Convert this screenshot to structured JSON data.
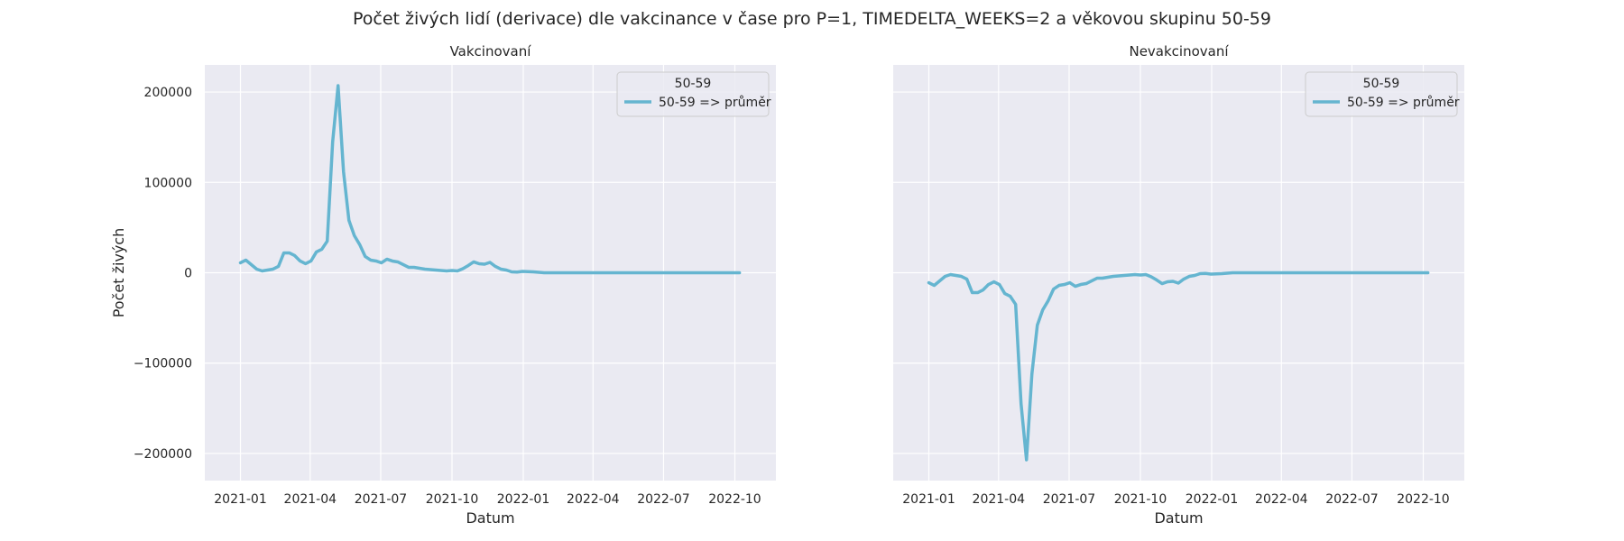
{
  "figure": {
    "suptitle": "Počet živých lidí (derivace) dle vakcinance v čase pro P=1, TIMEDELTA_WEEKS=2 a věkovou skupinu 50-59"
  },
  "style": {
    "axes_facecolor": "#eaeaf2",
    "grid_color": "#ffffff",
    "line_color": "#65b5d0",
    "text_color": "#262626"
  },
  "chart_data": [
    {
      "type": "line",
      "title": "Vakcinovaní",
      "xlabel": "Datum",
      "ylabel": "Počet živých",
      "ylim": [
        -230000,
        230000
      ],
      "xlim": [
        "2020-11-16",
        "2022-11-23"
      ],
      "yticks": [
        -200000,
        -100000,
        0,
        100000,
        200000
      ],
      "ytick_labels": [
        "−200000",
        "−100000",
        "0",
        "100000",
        "200000"
      ],
      "xticks": [
        "2021-01-01",
        "2021-04-01",
        "2021-07-01",
        "2021-10-01",
        "2022-01-01",
        "2022-04-01",
        "2022-07-01",
        "2022-10-01"
      ],
      "xtick_labels": [
        "2021-01",
        "2021-04",
        "2021-07",
        "2021-10",
        "2022-01",
        "2022-04",
        "2022-07",
        "2022-10"
      ],
      "legend": {
        "title": "50-59",
        "placement": "upper right"
      },
      "grid": true,
      "series": [
        {
          "name": "50-59 => průměr",
          "points": [
            [
              "2021-01-01",
              11000
            ],
            [
              "2021-01-08",
              14000
            ],
            [
              "2021-01-15",
              9000
            ],
            [
              "2021-01-22",
              4000
            ],
            [
              "2021-01-29",
              2000
            ],
            [
              "2021-02-05",
              3000
            ],
            [
              "2021-02-12",
              4000
            ],
            [
              "2021-02-19",
              7000
            ],
            [
              "2021-02-26",
              22000
            ],
            [
              "2021-03-05",
              22000
            ],
            [
              "2021-03-12",
              19000
            ],
            [
              "2021-03-19",
              13000
            ],
            [
              "2021-03-26",
              10000
            ],
            [
              "2021-04-02",
              13000
            ],
            [
              "2021-04-09",
              23000
            ],
            [
              "2021-04-16",
              26000
            ],
            [
              "2021-04-23",
              35000
            ],
            [
              "2021-04-30",
              145000
            ],
            [
              "2021-05-07",
              207000
            ],
            [
              "2021-05-14",
              112000
            ],
            [
              "2021-05-21",
              58000
            ],
            [
              "2021-05-28",
              41000
            ],
            [
              "2021-06-04",
              31000
            ],
            [
              "2021-06-11",
              18000
            ],
            [
              "2021-06-18",
              14000
            ],
            [
              "2021-06-25",
              13000
            ],
            [
              "2021-07-02",
              11000
            ],
            [
              "2021-07-09",
              15000
            ],
            [
              "2021-07-16",
              13000
            ],
            [
              "2021-07-23",
              12000
            ],
            [
              "2021-07-30",
              9000
            ],
            [
              "2021-08-06",
              6000
            ],
            [
              "2021-08-13",
              6000
            ],
            [
              "2021-08-20",
              5000
            ],
            [
              "2021-08-27",
              4000
            ],
            [
              "2021-09-03",
              3500
            ],
            [
              "2021-09-10",
              3000
            ],
            [
              "2021-09-17",
              2500
            ],
            [
              "2021-09-24",
              2000
            ],
            [
              "2021-10-01",
              2500
            ],
            [
              "2021-10-08",
              2000
            ],
            [
              "2021-10-15",
              4500
            ],
            [
              "2021-10-22",
              8000
            ],
            [
              "2021-10-29",
              12000
            ],
            [
              "2021-11-05",
              10000
            ],
            [
              "2021-11-12",
              9500
            ],
            [
              "2021-11-19",
              11500
            ],
            [
              "2021-11-26",
              7000
            ],
            [
              "2021-12-03",
              4000
            ],
            [
              "2021-12-10",
              3000
            ],
            [
              "2021-12-17",
              1000
            ],
            [
              "2021-12-24",
              800
            ],
            [
              "2021-12-31",
              1500
            ],
            [
              "2022-01-14",
              1000
            ],
            [
              "2022-01-28",
              0
            ],
            [
              "2022-02-25",
              0
            ],
            [
              "2022-04-01",
              0
            ],
            [
              "2022-06-01",
              0
            ],
            [
              "2022-08-01",
              0
            ],
            [
              "2022-10-07",
              0
            ]
          ]
        }
      ]
    },
    {
      "type": "line",
      "title": "Nevakcinovaní",
      "xlabel": "Datum",
      "ylabel": "",
      "ylim": [
        -230000,
        230000
      ],
      "xlim": [
        "2020-11-16",
        "2022-11-23"
      ],
      "yticks": [
        -200000,
        -100000,
        0,
        100000,
        200000
      ],
      "ytick_labels": [],
      "xticks": [
        "2021-01-01",
        "2021-04-01",
        "2021-07-01",
        "2021-10-01",
        "2022-01-01",
        "2022-04-01",
        "2022-07-01",
        "2022-10-01"
      ],
      "xtick_labels": [
        "2021-01",
        "2021-04",
        "2021-07",
        "2021-10",
        "2022-01",
        "2022-04",
        "2022-07",
        "2022-10"
      ],
      "legend": {
        "title": "50-59",
        "placement": "upper right"
      },
      "grid": true,
      "series": [
        {
          "name": "50-59 => průměr",
          "points": [
            [
              "2021-01-01",
              -11000
            ],
            [
              "2021-01-08",
              -14000
            ],
            [
              "2021-01-15",
              -9000
            ],
            [
              "2021-01-22",
              -4000
            ],
            [
              "2021-01-29",
              -2000
            ],
            [
              "2021-02-05",
              -3000
            ],
            [
              "2021-02-12",
              -4000
            ],
            [
              "2021-02-19",
              -7000
            ],
            [
              "2021-02-26",
              -22000
            ],
            [
              "2021-03-05",
              -22000
            ],
            [
              "2021-03-12",
              -19000
            ],
            [
              "2021-03-19",
              -13000
            ],
            [
              "2021-03-26",
              -10000
            ],
            [
              "2021-04-02",
              -13000
            ],
            [
              "2021-04-09",
              -23000
            ],
            [
              "2021-04-16",
              -26000
            ],
            [
              "2021-04-23",
              -35000
            ],
            [
              "2021-04-30",
              -145000
            ],
            [
              "2021-05-07",
              -207000
            ],
            [
              "2021-05-14",
              -112000
            ],
            [
              "2021-05-21",
              -58000
            ],
            [
              "2021-05-28",
              -41000
            ],
            [
              "2021-06-04",
              -31000
            ],
            [
              "2021-06-11",
              -18000
            ],
            [
              "2021-06-18",
              -14000
            ],
            [
              "2021-06-25",
              -13000
            ],
            [
              "2021-07-02",
              -11000
            ],
            [
              "2021-07-09",
              -15000
            ],
            [
              "2021-07-16",
              -13000
            ],
            [
              "2021-07-23",
              -12000
            ],
            [
              "2021-07-30",
              -9000
            ],
            [
              "2021-08-06",
              -6000
            ],
            [
              "2021-08-13",
              -6000
            ],
            [
              "2021-08-20",
              -5000
            ],
            [
              "2021-08-27",
              -4000
            ],
            [
              "2021-09-03",
              -3500
            ],
            [
              "2021-09-10",
              -3000
            ],
            [
              "2021-09-17",
              -2500
            ],
            [
              "2021-09-24",
              -2000
            ],
            [
              "2021-10-01",
              -2500
            ],
            [
              "2021-10-08",
              -2000
            ],
            [
              "2021-10-15",
              -4500
            ],
            [
              "2021-10-22",
              -8000
            ],
            [
              "2021-10-29",
              -12000
            ],
            [
              "2021-11-05",
              -10000
            ],
            [
              "2021-11-12",
              -9500
            ],
            [
              "2021-11-19",
              -11500
            ],
            [
              "2021-11-26",
              -7000
            ],
            [
              "2021-12-03",
              -4000
            ],
            [
              "2021-12-10",
              -3000
            ],
            [
              "2021-12-17",
              -1000
            ],
            [
              "2021-12-24",
              -800
            ],
            [
              "2021-12-31",
              -1500
            ],
            [
              "2022-01-14",
              -1000
            ],
            [
              "2022-01-28",
              0
            ],
            [
              "2022-02-25",
              0
            ],
            [
              "2022-04-01",
              0
            ],
            [
              "2022-06-01",
              0
            ],
            [
              "2022-08-01",
              0
            ],
            [
              "2022-10-07",
              0
            ]
          ]
        }
      ]
    }
  ]
}
